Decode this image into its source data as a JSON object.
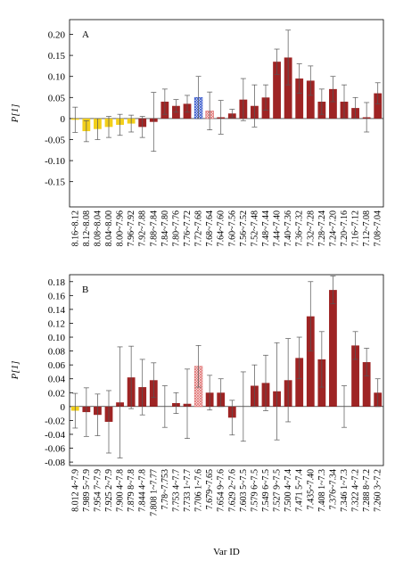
{
  "chart_data": [
    {
      "type": "bar",
      "title": "A",
      "y_label": "P[1]",
      "categories": [
        "8.16~8.12",
        "8.12~8.08",
        "8.08~8.04",
        "8.04~8.00",
        "8.00~7.96",
        "7.96~7.92",
        "7.92~7.88",
        "7.88~7.84",
        "7.84~7.80",
        "7.80~7.76",
        "7.76~7.72",
        "7.72~7.68",
        "7.68~7.64",
        "7.64~7.60",
        "7.60~7.56",
        "7.56~7.52",
        "7.52~7.48",
        "7.48~7.44",
        "7.44~7.40",
        "7.40~7.36",
        "7.36~7.32",
        "7.32~7.28",
        "7.28~7.24",
        "7.24~7.20",
        "7.20~7.16",
        "7.16~7.12",
        "7.12~7.08",
        "7.08~7.04"
      ],
      "values": [
        -0.003,
        -0.03,
        -0.025,
        -0.02,
        -0.015,
        -0.012,
        -0.02,
        -0.008,
        0.04,
        0.03,
        0.035,
        0.05,
        0.018,
        0.003,
        0.012,
        0.045,
        0.03,
        0.05,
        0.135,
        0.145,
        0.095,
        0.09,
        0.04,
        0.07,
        0.04,
        0.025,
        0.003,
        0.06
      ],
      "errors": [
        0.03,
        0.025,
        0.025,
        0.025,
        0.025,
        0.02,
        0.025,
        0.07,
        0.03,
        0.015,
        0.02,
        0.05,
        0.045,
        0.04,
        0.01,
        0.05,
        0.05,
        0.03,
        0.03,
        0.065,
        0.035,
        0.035,
        0.03,
        0.03,
        0.04,
        0.025,
        0.035,
        0.025
      ],
      "colors": [
        "#f2cf1a",
        "#f2cf1a",
        "#f2cf1a",
        "#f2cf1a",
        "#f2cf1a",
        "#f2cf1a",
        "#9e2424",
        "#9e2424",
        "#9e2424",
        "#9e2424",
        "#9e2424",
        "#3355cc",
        "#e07070",
        "#9e2424",
        "#9e2424",
        "#9e2424",
        "#9e2424",
        "#9e2424",
        "#9e2424",
        "#9e2424",
        "#9e2424",
        "#9e2424",
        "#9e2424",
        "#9e2424",
        "#9e2424",
        "#9e2424",
        "#9e2424",
        "#9e2424"
      ],
      "hatched_bars": [
        11,
        12
      ],
      "ylim": [
        -0.21,
        0.235
      ],
      "yticks": [
        {
          "value": -0.15,
          "label": "-0.15"
        },
        {
          "value": -0.1,
          "label": "-0.10"
        },
        {
          "value": -0.05,
          "label": "-0.05"
        },
        0,
        0.05,
        {
          "value": 0.1,
          "label": "0.10"
        },
        0.15,
        {
          "value": 0.2,
          "label": "0.20"
        }
      ]
    },
    {
      "type": "bar",
      "title": "B",
      "y_label": "P[1]",
      "x_label": "Var ID",
      "categories": [
        "8.012 4~7.9",
        "7.989 5~7.9",
        "7.954 7~7.9",
        "7.925 2~7.9",
        "7.900 4~7.8",
        "7.879 8~7.8",
        "7.844 4~7.8",
        "7.808 1~7.77",
        "7.78~7.753",
        "7.753 4~7.7",
        "7.733 1~7.7",
        "7.706 1~7.6",
        "7.679~7.65",
        "7.654 9~7.6",
        "7.629 2~7.6",
        "7.603 5~7.5",
        "7.579 6~7.5",
        "7.549 6~7.5",
        "7.527 9~7.5",
        "7.500 4~7.4",
        "7.471 5~7.4",
        "7.435~7.40",
        "7.408 1~7.3",
        "7.376~7.34",
        "7.346 1~7.3",
        "7.322 4~7.2",
        "7.288 8~7.2",
        "7.260 3~7.2"
      ],
      "values": [
        -0.006,
        -0.008,
        -0.012,
        -0.022,
        0.006,
        0.042,
        0.028,
        0.038,
        0,
        0.005,
        0.004,
        0.058,
        0.02,
        0.02,
        -0.016,
        0,
        0.03,
        0.034,
        0.022,
        0.038,
        0.07,
        0.13,
        0.068,
        0.168,
        0,
        0.088,
        0.064,
        0.02
      ],
      "errors": [
        0.025,
        0.035,
        0.03,
        0.045,
        0.08,
        0.045,
        0.04,
        0.025,
        0.03,
        0.015,
        0.05,
        0.03,
        0.025,
        0.02,
        0.025,
        0.05,
        0.03,
        0.04,
        0.07,
        0.06,
        0.03,
        0.05,
        0.04,
        0.02,
        0.03,
        0.02,
        0.02,
        0.02
      ],
      "colors": [
        "#f2cf1a",
        "#9e2424",
        "#9e2424",
        "#9e2424",
        "#9e2424",
        "#9e2424",
        "#9e2424",
        "#9e2424",
        "#9e2424",
        "#9e2424",
        "#9e2424",
        "#e07070",
        "#9e2424",
        "#9e2424",
        "#9e2424",
        "#9e2424",
        "#9e2424",
        "#9e2424",
        "#9e2424",
        "#9e2424",
        "#9e2424",
        "#9e2424",
        "#9e2424",
        "#9e2424",
        "#9e2424",
        "#9e2424",
        "#9e2424",
        "#9e2424"
      ],
      "hatched_bars": [
        11
      ],
      "ylim": [
        -0.085,
        0.19
      ],
      "yticks": [
        {
          "value": -0.08,
          "label": "-0.08"
        },
        {
          "value": -0.06,
          "label": "-0.06"
        },
        {
          "value": -0.04,
          "label": "-0.04"
        },
        {
          "value": -0.02,
          "label": "-0.02"
        },
        0,
        0.02,
        0.04,
        0.06,
        0.08,
        {
          "value": 0.1,
          "label": "0.10"
        },
        0.12,
        0.14,
        0.16,
        0.18
      ]
    }
  ]
}
